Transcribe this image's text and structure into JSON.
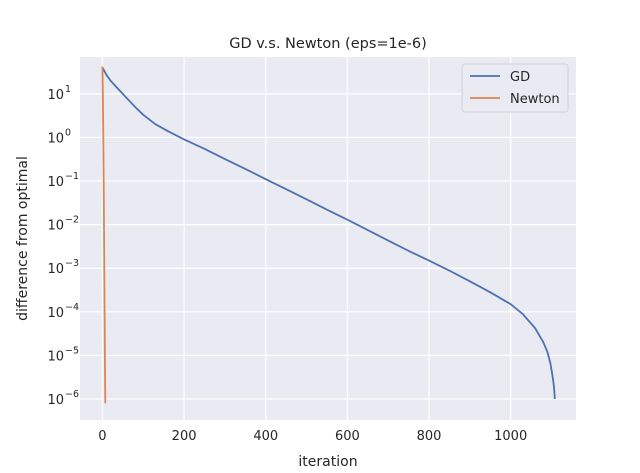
{
  "chart_data": {
    "type": "line",
    "title": "GD v.s. Newton (eps=1e-6)",
    "xlabel": "iteration",
    "ylabel": "difference from optimal",
    "xlim": [
      -55,
      1160
    ],
    "ylim": [
      3.3e-07,
      70
    ],
    "yscale": "log",
    "grid": true,
    "legend_position": "top-right",
    "xticks": [
      {
        "value": 0,
        "label": "0"
      },
      {
        "value": 200,
        "label": "200"
      },
      {
        "value": 400,
        "label": "400"
      },
      {
        "value": 600,
        "label": "600"
      },
      {
        "value": 800,
        "label": "800"
      },
      {
        "value": 1000,
        "label": "1000"
      }
    ],
    "yticks": [
      {
        "value": 10,
        "base": "10",
        "exp": "1"
      },
      {
        "value": 1,
        "base": "10",
        "exp": "0"
      },
      {
        "value": 0.1,
        "base": "10",
        "exp": "−1"
      },
      {
        "value": 0.01,
        "base": "10",
        "exp": "−2"
      },
      {
        "value": 0.001,
        "base": "10",
        "exp": "−3"
      },
      {
        "value": 0.0001,
        "base": "10",
        "exp": "−4"
      },
      {
        "value": 1e-05,
        "base": "10",
        "exp": "−5"
      },
      {
        "value": 1e-06,
        "base": "10",
        "exp": "−6"
      }
    ],
    "series": [
      {
        "name": "GD",
        "color": "#4c72b0",
        "x": [
          0,
          10,
          20,
          40,
          60,
          80,
          100,
          130,
          160,
          200,
          250,
          300,
          350,
          400,
          450,
          500,
          550,
          600,
          650,
          700,
          750,
          800,
          850,
          900,
          950,
          1000,
          1030,
          1060,
          1080,
          1090,
          1097,
          1102,
          1105,
          1107,
          1108
        ],
        "y": [
          40,
          27,
          20,
          12.5,
          7.9,
          5.0,
          3.3,
          2.0,
          1.4,
          0.9,
          0.55,
          0.32,
          0.19,
          0.11,
          0.065,
          0.038,
          0.022,
          0.013,
          0.0075,
          0.0043,
          0.0025,
          0.0015,
          0.00088,
          0.0005,
          0.00028,
          0.00015,
          8.8e-05,
          4.2e-05,
          2e-05,
          1.2e-05,
          6.8e-06,
          3.6e-06,
          2.3e-06,
          1.5e-06,
          1e-06
        ]
      },
      {
        "name": "Newton",
        "color": "#dd8452",
        "x": [
          0,
          1,
          2,
          3,
          4,
          5,
          6,
          7
        ],
        "y": [
          42,
          9,
          1.2,
          0.09,
          0.005,
          0.0002,
          8e-06,
          8e-07
        ]
      }
    ]
  }
}
